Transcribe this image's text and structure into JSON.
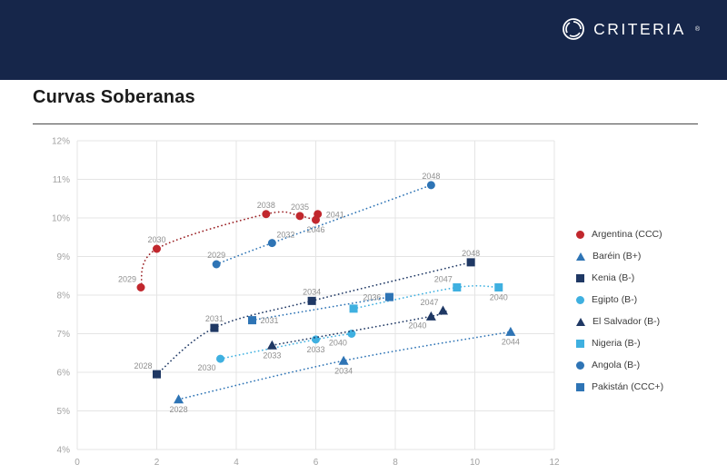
{
  "header": {
    "brand": "CRITERIA",
    "registered": "®"
  },
  "page": {
    "title": "Curvas Soberanas"
  },
  "chart_data": {
    "type": "scatter",
    "title": "Curvas Soberanas",
    "xlabel": "",
    "ylabel": "",
    "xlim": [
      0,
      12
    ],
    "ylim": [
      4,
      12
    ],
    "x_ticks": [
      "0",
      "2",
      "4",
      "6",
      "8",
      "10",
      "12"
    ],
    "y_ticks": [
      "4%",
      "5%",
      "6%",
      "7%",
      "8%",
      "9%",
      "10%",
      "11%",
      "12%"
    ],
    "grid": true,
    "legend_position": "right",
    "line_style": "dotted",
    "series": [
      {
        "name": "Argentina (CCC)",
        "marker": "circle",
        "color": "#c1272d",
        "line_color": "#9a1f23",
        "points": [
          {
            "x": 1.6,
            "y": 8.2,
            "label": "2029",
            "lp": "above-left"
          },
          {
            "x": 2.0,
            "y": 9.2,
            "label": "2030",
            "lp": "above"
          },
          {
            "x": 4.75,
            "y": 10.1,
            "label": "2038",
            "lp": "above"
          },
          {
            "x": 5.6,
            "y": 10.05,
            "label": "2035",
            "lp": "above"
          },
          {
            "x": 6.05,
            "y": 10.1,
            "label": "2041",
            "lp": "right"
          },
          {
            "x": 6.0,
            "y": 9.95,
            "label": "2046",
            "lp": "below"
          }
        ]
      },
      {
        "name": "Baréin (B+)",
        "marker": "triangle",
        "color": "#2e74b5",
        "points": [
          {
            "x": 2.55,
            "y": 5.3,
            "label": "2028",
            "lp": "below"
          },
          {
            "x": 6.7,
            "y": 6.3,
            "label": "2034",
            "lp": "below"
          },
          {
            "x": 10.9,
            "y": 7.05,
            "label": "2044",
            "lp": "below"
          }
        ]
      },
      {
        "name": "Kenia (B-)",
        "marker": "square",
        "color": "#1f3864",
        "points": [
          {
            "x": 2.0,
            "y": 5.95,
            "label": "2028",
            "lp": "above-left"
          },
          {
            "x": 3.45,
            "y": 7.15,
            "label": "2031",
            "lp": "above"
          },
          {
            "x": 5.9,
            "y": 7.85,
            "label": "2034",
            "lp": "above"
          },
          {
            "x": 9.9,
            "y": 8.85,
            "label": "2048",
            "lp": "above"
          }
        ]
      },
      {
        "name": "Egipto (B-)",
        "marker": "circle",
        "color": "#3fb0e0",
        "points": [
          {
            "x": 3.6,
            "y": 6.35,
            "label": "2030",
            "lp": "below-left"
          },
          {
            "x": 6.0,
            "y": 6.85,
            "label": "2033",
            "lp": "below"
          },
          {
            "x": 6.9,
            "y": 7.0,
            "label": "2040",
            "lp": "below-left"
          }
        ]
      },
      {
        "name": "El Salvador (B-)",
        "marker": "triangle",
        "color": "#1f3864",
        "points": [
          {
            "x": 4.9,
            "y": 6.7,
            "label": "2033",
            "lp": "below"
          },
          {
            "x": 8.9,
            "y": 7.45,
            "label": "2040",
            "lp": "below-left"
          },
          {
            "x": 9.2,
            "y": 7.6,
            "label": "2047",
            "lp": "above-left"
          }
        ]
      },
      {
        "name": "Nigeria (B-)",
        "marker": "square",
        "color": "#3fb0e0",
        "points": [
          {
            "x": 6.95,
            "y": 7.65,
            "label": "",
            "lp": "above"
          },
          {
            "x": 9.55,
            "y": 8.2,
            "label": "2047",
            "lp": "above-left"
          },
          {
            "x": 10.6,
            "y": 8.2,
            "label": "2040",
            "lp": "below"
          }
        ]
      },
      {
        "name": "Angola (B-)",
        "marker": "circle",
        "color": "#2e74b5",
        "points": [
          {
            "x": 3.5,
            "y": 8.8,
            "label": "2029",
            "lp": "above"
          },
          {
            "x": 4.9,
            "y": 9.35,
            "label": "2032",
            "lp": "above-right"
          },
          {
            "x": 8.9,
            "y": 10.85,
            "label": "2048",
            "lp": "above"
          }
        ]
      },
      {
        "name": "Pakistán (CCC+)",
        "marker": "square",
        "color": "#2e74b5",
        "points": [
          {
            "x": 4.4,
            "y": 7.35,
            "label": "2031",
            "lp": "right"
          },
          {
            "x": 7.85,
            "y": 7.95,
            "label": "2036",
            "lp": "left"
          }
        ]
      }
    ]
  }
}
